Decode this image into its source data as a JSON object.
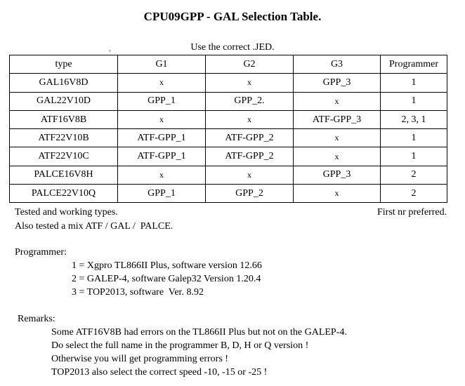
{
  "title": "CPU09GPP - GAL Selection Table.",
  "mark": ".",
  "subtitle": "Use the correct .JED.",
  "table": {
    "headers": [
      "type",
      "G1",
      "G2",
      "G3",
      "Programmer"
    ],
    "rows": [
      [
        "GAL16V8D",
        "x",
        "x",
        "GPP_3",
        "1"
      ],
      [
        "GAL22V10D",
        "GPP_1",
        "GPP_2.",
        "x",
        "1"
      ],
      [
        "ATF16V8B",
        "x",
        "x",
        "ATF-GPP_3",
        "2, 3, 1"
      ],
      [
        "ATF22V10B",
        "ATF-GPP_1",
        "ATF-GPP_2",
        "x",
        "1"
      ],
      [
        "ATF22V10C",
        "ATF-GPP_1",
        "ATF-GPP_2",
        "x",
        "1"
      ],
      [
        "PALCE16V8H",
        "x",
        "x",
        "GPP_3",
        "2"
      ],
      [
        "PALCE22V10Q",
        "GPP_1",
        "GPP_2",
        "x",
        "2"
      ]
    ]
  },
  "notes": {
    "tested": "Tested and working types.",
    "first_pref": "First nr preferred.",
    "mix": "Also tested a mix ATF / GAL /  PALCE."
  },
  "programmer": {
    "heading": "Programmer:",
    "items": [
      "1 = Xgpro TL866II Plus, software version 12.66",
      "2 = GALEP-4, software Galep32 Version 1.20.4",
      "3 = TOP2013, software  Ver. 8.92"
    ]
  },
  "remarks": {
    "heading": "Remarks:",
    "items": [
      "Some ATF16V8B had errors on the TL866II Plus but not on the GALEP-4.",
      "Do select the full name in the programmer B, D, H or Q version !",
      "Otherwise you will get programming errors !",
      "TOP2013 also select the correct speed -10, -15 or -25 !"
    ]
  }
}
